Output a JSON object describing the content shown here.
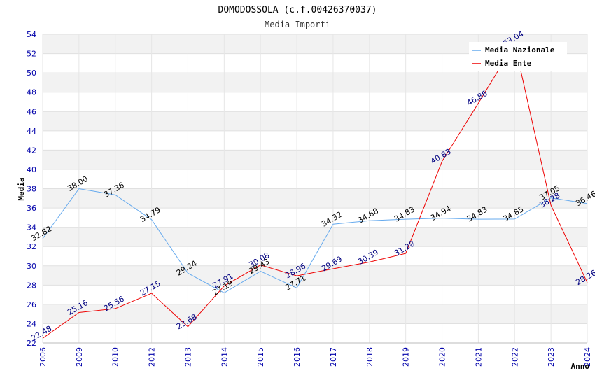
{
  "chart_data": {
    "type": "line",
    "title": "DOMODOSSOLA (c.f.00426370037)",
    "subtitle": "Media Importi",
    "xlabel": "Anno",
    "ylabel": "Media",
    "ylim": [
      22,
      54
    ],
    "y_ticks": [
      "22",
      "24",
      "26",
      "28",
      "30",
      "32",
      "34",
      "36",
      "38",
      "40",
      "42",
      "44",
      "46",
      "48",
      "50",
      "52",
      "54"
    ],
    "categories": [
      "2006",
      "2009",
      "2010",
      "2012",
      "2013",
      "2014",
      "2015",
      "2016",
      "2017",
      "2018",
      "2019",
      "2020",
      "2021",
      "2022",
      "2023",
      "2024"
    ],
    "grid": true,
    "legend_position": "top-right",
    "series": [
      {
        "name": "Media Nazionale",
        "color": "#66aaee",
        "label_color": "#000000",
        "values": [
          32.82,
          38.0,
          37.36,
          34.79,
          29.24,
          27.19,
          29.43,
          27.71,
          34.32,
          34.68,
          34.83,
          34.94,
          34.83,
          34.85,
          37.05,
          36.46
        ],
        "labels": [
          "32.82",
          "38.00",
          "37.36",
          "34.79",
          "29.24",
          "27.19",
          "29.43",
          "27.71",
          "34.32",
          "34.68",
          "34.83",
          "34.94",
          "34.83",
          "34.85",
          "37.05",
          "36.46"
        ]
      },
      {
        "name": "Media Ente",
        "color": "#ee0000",
        "label_color": "#000080",
        "values": [
          22.48,
          25.16,
          25.56,
          27.15,
          23.68,
          27.91,
          30.08,
          28.96,
          29.69,
          30.39,
          31.28,
          40.83,
          46.86,
          53.04,
          36.28,
          28.26
        ],
        "labels": [
          "22.48",
          "25.16",
          "25.56",
          "27.15",
          "23.68",
          "27.91",
          "30.08",
          "28.96",
          "29.69",
          "30.39",
          "31.28",
          "40.83",
          "46.86",
          "53.04",
          "36.28",
          "28.26"
        ]
      }
    ]
  }
}
